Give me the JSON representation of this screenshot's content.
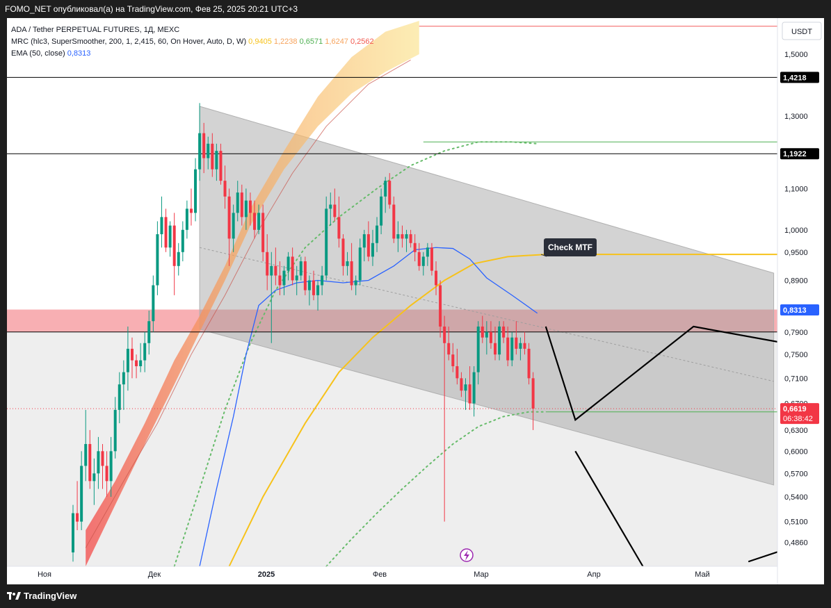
{
  "header": {
    "text": "FOMO_NET опубликовал(а) на TradingView.com, Фев 25, 2025 20:21 UTC+3"
  },
  "footer": {
    "brand": "TradingView"
  },
  "legend": {
    "symbol": "ADA / Tether PERPETUAL FUTURES, 1Д, MEXC",
    "mrc_label": "MRC (hlc3, SuperSmoother, 200, 1, 2,415, 60, On Hover, Auto, D, W)",
    "mrc_values": [
      {
        "v": "0,9405",
        "color": "#f7c21a"
      },
      {
        "v": "1,2238",
        "color": "#f7a35c"
      },
      {
        "v": "0,6571",
        "color": "#4caf50"
      },
      {
        "v": "1,6247",
        "color": "#f7a35c"
      },
      {
        "v": "0,2562",
        "color": "#f2574d"
      }
    ],
    "ema_label": "EMA (50, close)",
    "ema_value": "0,8313",
    "ema_color": "#2962ff"
  },
  "annotation": {
    "text": "Check MTF"
  },
  "colors": {
    "up": "#089981",
    "down": "#f23645",
    "ema": "#2962ff",
    "mean": "#f7c21a",
    "band_dots": "#66bb6a",
    "channel": "#b0b0b0",
    "resistance_zone": "#f7a1a6"
  },
  "chart_data": {
    "type": "candlestick",
    "title": "ADA / Tether PERPETUAL FUTURES, 1Д, MEXC",
    "yunit": "USDT",
    "ylim": [
      0.46,
      1.62
    ],
    "y_scale": "log",
    "y_ticks": [
      "1,5000",
      "1,3000",
      "1,1000",
      "1,0000",
      "0,9500",
      "0,8900",
      "0,7900",
      "0,7500",
      "0,7100",
      "0,6700",
      "0,6300",
      "0,6000",
      "0,5700",
      "0,5400",
      "0,5100",
      "0,4860"
    ],
    "x_labels": [
      "Ноя",
      "Дек",
      "2025",
      "Фев",
      "Мар",
      "Апр",
      "Май"
    ],
    "price_tags": [
      {
        "label": "1,4218",
        "value": 1.4218,
        "style": "dark"
      },
      {
        "label": "1,1922",
        "value": 1.1922,
        "style": "dark"
      },
      {
        "label": "0,8313",
        "value": 0.8313,
        "style": "ema"
      },
      {
        "label": "0,6619",
        "value": 0.6619,
        "style": "last"
      }
    ],
    "countdown": "06:38:42",
    "horizontal_levels": [
      1.4218,
      1.1922,
      0.79
    ],
    "candles": [
      [
        0.475,
        0.53,
        0.465,
        0.52
      ],
      [
        0.52,
        0.56,
        0.5,
        0.51
      ],
      [
        0.51,
        0.6,
        0.5,
        0.58
      ],
      [
        0.58,
        0.66,
        0.56,
        0.61
      ],
      [
        0.61,
        0.63,
        0.55,
        0.56
      ],
      [
        0.56,
        0.59,
        0.53,
        0.57
      ],
      [
        0.57,
        0.62,
        0.55,
        0.6
      ],
      [
        0.6,
        0.61,
        0.55,
        0.58
      ],
      [
        0.58,
        0.6,
        0.54,
        0.56
      ],
      [
        0.56,
        0.62,
        0.54,
        0.6
      ],
      [
        0.6,
        0.68,
        0.59,
        0.66
      ],
      [
        0.66,
        0.72,
        0.64,
        0.7
      ],
      [
        0.7,
        0.74,
        0.66,
        0.72
      ],
      [
        0.72,
        0.8,
        0.69,
        0.76
      ],
      [
        0.76,
        0.78,
        0.71,
        0.74
      ],
      [
        0.74,
        0.75,
        0.71,
        0.73
      ],
      [
        0.73,
        0.77,
        0.72,
        0.74
      ],
      [
        0.74,
        0.79,
        0.72,
        0.77
      ],
      [
        0.77,
        0.83,
        0.75,
        0.81
      ],
      [
        0.81,
        0.9,
        0.79,
        0.88
      ],
      [
        0.88,
        1.02,
        0.86,
        0.99
      ],
      [
        0.99,
        1.08,
        0.96,
        1.03
      ],
      [
        1.03,
        1.05,
        0.95,
        0.96
      ],
      [
        0.96,
        1.02,
        0.94,
        1.01
      ],
      [
        1.01,
        1.04,
        0.86,
        0.92
      ],
      [
        0.92,
        0.97,
        0.9,
        0.95
      ],
      [
        0.95,
        1.02,
        0.93,
        1.0
      ],
      [
        1.0,
        1.07,
        0.98,
        1.05
      ],
      [
        1.05,
        1.1,
        1.01,
        1.04
      ],
      [
        1.04,
        1.18,
        1.02,
        1.15
      ],
      [
        1.15,
        1.34,
        1.12,
        1.25
      ],
      [
        1.25,
        1.28,
        1.14,
        1.18
      ],
      [
        1.18,
        1.24,
        1.15,
        1.22
      ],
      [
        1.22,
        1.25,
        1.13,
        1.15
      ],
      [
        1.15,
        1.22,
        1.12,
        1.2
      ],
      [
        1.2,
        1.22,
        1.11,
        1.12
      ],
      [
        1.12,
        1.16,
        1.05,
        1.08
      ],
      [
        1.08,
        1.1,
        0.92,
        0.98
      ],
      [
        0.98,
        1.06,
        0.95,
        1.04
      ],
      [
        1.04,
        1.12,
        1.02,
        1.09
      ],
      [
        1.09,
        1.11,
        1.01,
        1.03
      ],
      [
        1.03,
        1.1,
        1.0,
        1.07
      ],
      [
        1.07,
        1.09,
        1.01,
        1.04
      ],
      [
        1.04,
        1.07,
        0.98,
        1.0
      ],
      [
        1.0,
        1.06,
        0.99,
        1.04
      ],
      [
        1.04,
        1.06,
        0.93,
        0.95
      ],
      [
        0.95,
        0.99,
        0.87,
        0.9
      ],
      [
        0.9,
        0.95,
        0.77,
        0.92
      ],
      [
        0.92,
        0.96,
        0.88,
        0.9
      ],
      [
        0.9,
        0.93,
        0.86,
        0.88
      ],
      [
        0.88,
        0.92,
        0.86,
        0.91
      ],
      [
        0.91,
        0.95,
        0.89,
        0.94
      ],
      [
        0.94,
        0.96,
        0.88,
        0.89
      ],
      [
        0.89,
        0.92,
        0.86,
        0.9
      ],
      [
        0.9,
        0.94,
        0.89,
        0.93
      ],
      [
        0.93,
        0.94,
        0.86,
        0.87
      ],
      [
        0.87,
        0.9,
        0.84,
        0.89
      ],
      [
        0.89,
        0.91,
        0.85,
        0.86
      ],
      [
        0.86,
        0.89,
        0.83,
        0.88
      ],
      [
        0.88,
        0.92,
        0.86,
        0.9
      ],
      [
        0.9,
        1.08,
        0.89,
        1.05
      ],
      [
        1.05,
        1.09,
        1.01,
        1.06
      ],
      [
        1.06,
        1.1,
        1.02,
        1.03
      ],
      [
        1.03,
        1.08,
        0.96,
        0.98
      ],
      [
        0.98,
        0.99,
        0.9,
        0.92
      ],
      [
        0.92,
        0.95,
        0.9,
        0.93
      ],
      [
        0.93,
        0.97,
        0.87,
        0.88
      ],
      [
        0.88,
        0.9,
        0.86,
        0.89
      ],
      [
        0.89,
        0.98,
        0.88,
        0.96
      ],
      [
        0.96,
        1.0,
        0.93,
        0.99
      ],
      [
        0.99,
        1.02,
        0.93,
        0.94
      ],
      [
        0.94,
        1.0,
        0.92,
        0.97
      ],
      [
        0.97,
        1.03,
        0.95,
        1.01
      ],
      [
        1.01,
        1.1,
        0.99,
        1.08
      ],
      [
        1.08,
        1.13,
        1.04,
        1.12
      ],
      [
        1.12,
        1.14,
        1.05,
        1.06
      ],
      [
        1.06,
        1.08,
        0.97,
        0.98
      ],
      [
        0.98,
        1.02,
        0.95,
        0.99
      ],
      [
        0.99,
        1.01,
        0.96,
        0.98
      ],
      [
        0.98,
        1.0,
        0.95,
        0.99
      ],
      [
        0.99,
        1.0,
        0.96,
        0.97
      ],
      [
        0.97,
        0.99,
        0.93,
        0.95
      ],
      [
        0.95,
        0.97,
        0.91,
        0.92
      ],
      [
        0.92,
        0.95,
        0.9,
        0.94
      ],
      [
        0.94,
        0.97,
        0.92,
        0.96
      ],
      [
        0.96,
        0.97,
        0.9,
        0.91
      ],
      [
        0.91,
        0.93,
        0.86,
        0.88
      ],
      [
        0.88,
        0.89,
        0.78,
        0.8
      ],
      [
        0.8,
        0.82,
        0.51,
        0.77
      ],
      [
        0.77,
        0.8,
        0.74,
        0.75
      ],
      [
        0.75,
        0.77,
        0.72,
        0.73
      ],
      [
        0.73,
        0.76,
        0.7,
        0.71
      ],
      [
        0.71,
        0.72,
        0.68,
        0.69
      ],
      [
        0.69,
        0.71,
        0.66,
        0.7
      ],
      [
        0.7,
        0.73,
        0.66,
        0.67
      ],
      [
        0.67,
        0.73,
        0.65,
        0.72
      ],
      [
        0.72,
        0.81,
        0.7,
        0.8
      ],
      [
        0.8,
        0.82,
        0.77,
        0.78
      ],
      [
        0.78,
        0.81,
        0.75,
        0.79
      ],
      [
        0.79,
        0.81,
        0.76,
        0.77
      ],
      [
        0.77,
        0.8,
        0.74,
        0.75
      ],
      [
        0.75,
        0.81,
        0.74,
        0.8
      ],
      [
        0.8,
        0.81,
        0.77,
        0.78
      ],
      [
        0.78,
        0.8,
        0.73,
        0.74
      ],
      [
        0.74,
        0.79,
        0.73,
        0.78
      ],
      [
        0.78,
        0.81,
        0.75,
        0.76
      ],
      [
        0.76,
        0.78,
        0.74,
        0.77
      ],
      [
        0.77,
        0.79,
        0.75,
        0.76
      ],
      [
        0.76,
        0.77,
        0.7,
        0.71
      ],
      [
        0.71,
        0.72,
        0.63,
        0.6619
      ]
    ],
    "ema50": [
      [
        30,
        0.46
      ],
      [
        34,
        0.55
      ],
      [
        38,
        0.65
      ],
      [
        41,
        0.75
      ],
      [
        44,
        0.84
      ],
      [
        48,
        0.87
      ],
      [
        53,
        0.885
      ],
      [
        58,
        0.89
      ],
      [
        64,
        0.885
      ],
      [
        70,
        0.89
      ],
      [
        76,
        0.92
      ],
      [
        81,
        0.955
      ],
      [
        86,
        0.96
      ],
      [
        90,
        0.958
      ],
      [
        94,
        0.935
      ],
      [
        98,
        0.895
      ],
      [
        104,
        0.86
      ],
      [
        110,
        0.825
      ]
    ],
    "mrc_mean": [
      [
        37,
        0.46
      ],
      [
        45,
        0.54
      ],
      [
        55,
        0.64
      ],
      [
        63,
        0.72
      ],
      [
        71,
        0.78
      ],
      [
        80,
        0.84
      ],
      [
        88,
        0.89
      ],
      [
        95,
        0.925
      ],
      [
        103,
        0.94
      ],
      [
        112,
        0.945
      ],
      [
        260,
        0.945
      ]
    ],
    "upper_band_dots": [
      [
        24,
        0.46
      ],
      [
        30,
        0.55
      ],
      [
        36,
        0.66
      ],
      [
        42,
        0.77
      ],
      [
        48,
        0.87
      ],
      [
        55,
        0.96
      ],
      [
        63,
        1.03
      ],
      [
        72,
        1.1
      ],
      [
        80,
        1.16
      ],
      [
        88,
        1.2
      ],
      [
        96,
        1.225
      ],
      [
        104,
        1.225
      ],
      [
        110,
        1.22
      ]
    ],
    "lower_band_dots": [
      [
        60,
        0.46
      ],
      [
        66,
        0.49
      ],
      [
        72,
        0.52
      ],
      [
        78,
        0.55
      ],
      [
        84,
        0.58
      ],
      [
        90,
        0.61
      ],
      [
        96,
        0.635
      ],
      [
        102,
        0.65
      ],
      [
        108,
        0.657
      ],
      [
        112,
        0.657
      ]
    ],
    "channel_lines": [
      [
        [
          30,
          1.33
        ],
        [
          166,
          0.905
        ]
      ],
      [
        [
          30,
          0.795
        ],
        [
          166,
          0.555
        ]
      ],
      [
        [
          30,
          0.96
        ],
        [
          166,
          0.705
        ]
      ]
    ],
    "projection_lines": [
      [
        [
          112,
          0.8
        ],
        [
          119,
          0.645
        ],
        [
          147,
          0.8
        ],
        [
          176,
          0.76
        ]
      ],
      [
        [
          119,
          0.6
        ],
        [
          135,
          0.46
        ]
      ],
      [
        [
          160,
          0.465
        ],
        [
          173,
          0.485
        ],
        [
          176,
          0.465
        ]
      ]
    ]
  }
}
